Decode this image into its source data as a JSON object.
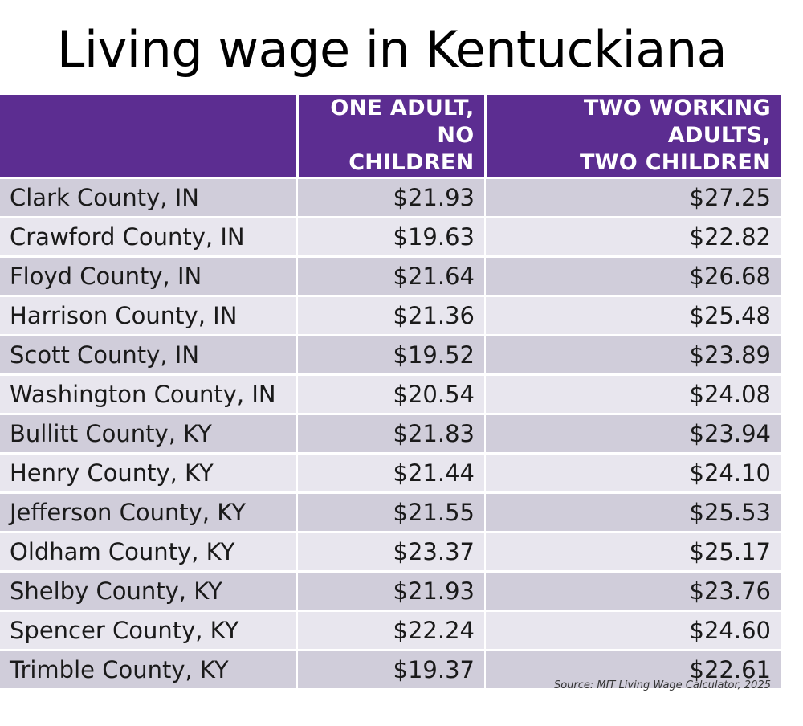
{
  "chart_data": {
    "type": "table",
    "title": "Living wage in Kentuckiana",
    "columns": [
      "",
      [
        "ONE ADULT,",
        "NO CHILDREN"
      ],
      [
        "TWO WORKING ADULTS,",
        "TWO CHILDREN"
      ]
    ],
    "rows": [
      {
        "county": "Clark County, IN",
        "one_adult": "$21.93",
        "two_adults": "$27.25"
      },
      {
        "county": "Crawford County, IN",
        "one_adult": "$19.63",
        "two_adults": "$22.82"
      },
      {
        "county": "Floyd County, IN",
        "one_adult": "$21.64",
        "two_adults": "$26.68"
      },
      {
        "county": "Harrison County, IN",
        "one_adult": "$21.36",
        "two_adults": "$25.48"
      },
      {
        "county": "Scott County, IN",
        "one_adult": "$19.52",
        "two_adults": "$23.89"
      },
      {
        "county": "Washington County, IN",
        "one_adult": "$20.54",
        "two_adults": "$24.08"
      },
      {
        "county": "Bullitt County, KY",
        "one_adult": "$21.83",
        "two_adults": "$23.94"
      },
      {
        "county": "Henry County, KY",
        "one_adult": "$21.44",
        "two_adults": "$24.10"
      },
      {
        "county": "Jefferson County, KY",
        "one_adult": "$21.55",
        "two_adults": "$25.53"
      },
      {
        "county": "Oldham County, KY",
        "one_adult": "$23.37",
        "two_adults": "$25.17"
      },
      {
        "county": "Shelby County, KY",
        "one_adult": "$21.93",
        "two_adults": "$23.76"
      },
      {
        "county": "Spencer County, KY",
        "one_adult": "$22.24",
        "two_adults": "$24.60"
      },
      {
        "county": "Trimble County, KY",
        "one_adult": "$19.37",
        "two_adults": "$22.61"
      }
    ],
    "source": "Source: MIT Living Wage Calculator, 2025"
  },
  "colors": {
    "header_bg": "#5c2d91",
    "header_text": "#ffffff",
    "row_odd": "#d0cdda",
    "row_even": "#e8e6ee"
  }
}
